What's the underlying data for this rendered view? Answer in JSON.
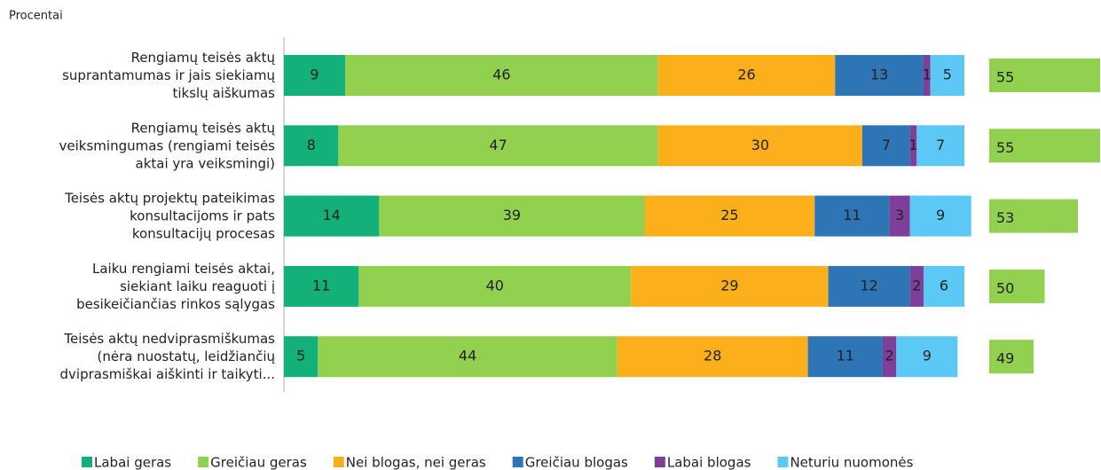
{
  "chart_data": {
    "type": "stacked_barh",
    "title": "Procentai",
    "categories": [
      "Rengiamų teisės aktų\nsuprantamumas ir jais siekiamų\ntikslų aiškumas",
      "Rengiamų teisės aktų\nveiksmingumas (rengiami teisės\naktai yra veiksmingi)",
      "Teisės aktų projektų pateikimas\nkonsultacijoms ir pats\nkonsultacijų procesas",
      "Laiku rengiami teisės aktai,\nsiekiant laiku reaguoti į\nbesikeičiančias rinkos sąlygas",
      "Teisės aktų nedviprasmiškumas\n(nėra nuostatų, leidžiančių\ndviprasmiškai aiškinti ir taikyti..."
    ],
    "xlim": [
      0,
      100
    ],
    "series": [
      {
        "name": "Labai geras",
        "color": "#13b07a",
        "values": [
          9,
          8,
          14,
          11,
          5
        ]
      },
      {
        "name": "Greičiau geras",
        "color": "#92d050",
        "values": [
          46,
          47,
          39,
          40,
          44
        ]
      },
      {
        "name": "Nei blogas, nei geras",
        "color": "#fbb01b",
        "values": [
          26,
          30,
          25,
          29,
          28
        ]
      },
      {
        "name": "Greičiau blogas",
        "color": "#2e75b6",
        "values": [
          13,
          7,
          11,
          12,
          11
        ]
      },
      {
        "name": "Labai blogas",
        "color": "#7f3f98",
        "values": [
          1,
          1,
          3,
          2,
          2
        ]
      },
      {
        "name": "Neturiu nuomonės",
        "color": "#5bc8f5",
        "values": [
          5,
          7,
          9,
          6,
          9
        ]
      }
    ],
    "totals": {
      "color": "#92d050",
      "values": [
        55,
        55,
        53,
        50,
        49
      ],
      "xlim": [
        45,
        55
      ]
    }
  }
}
